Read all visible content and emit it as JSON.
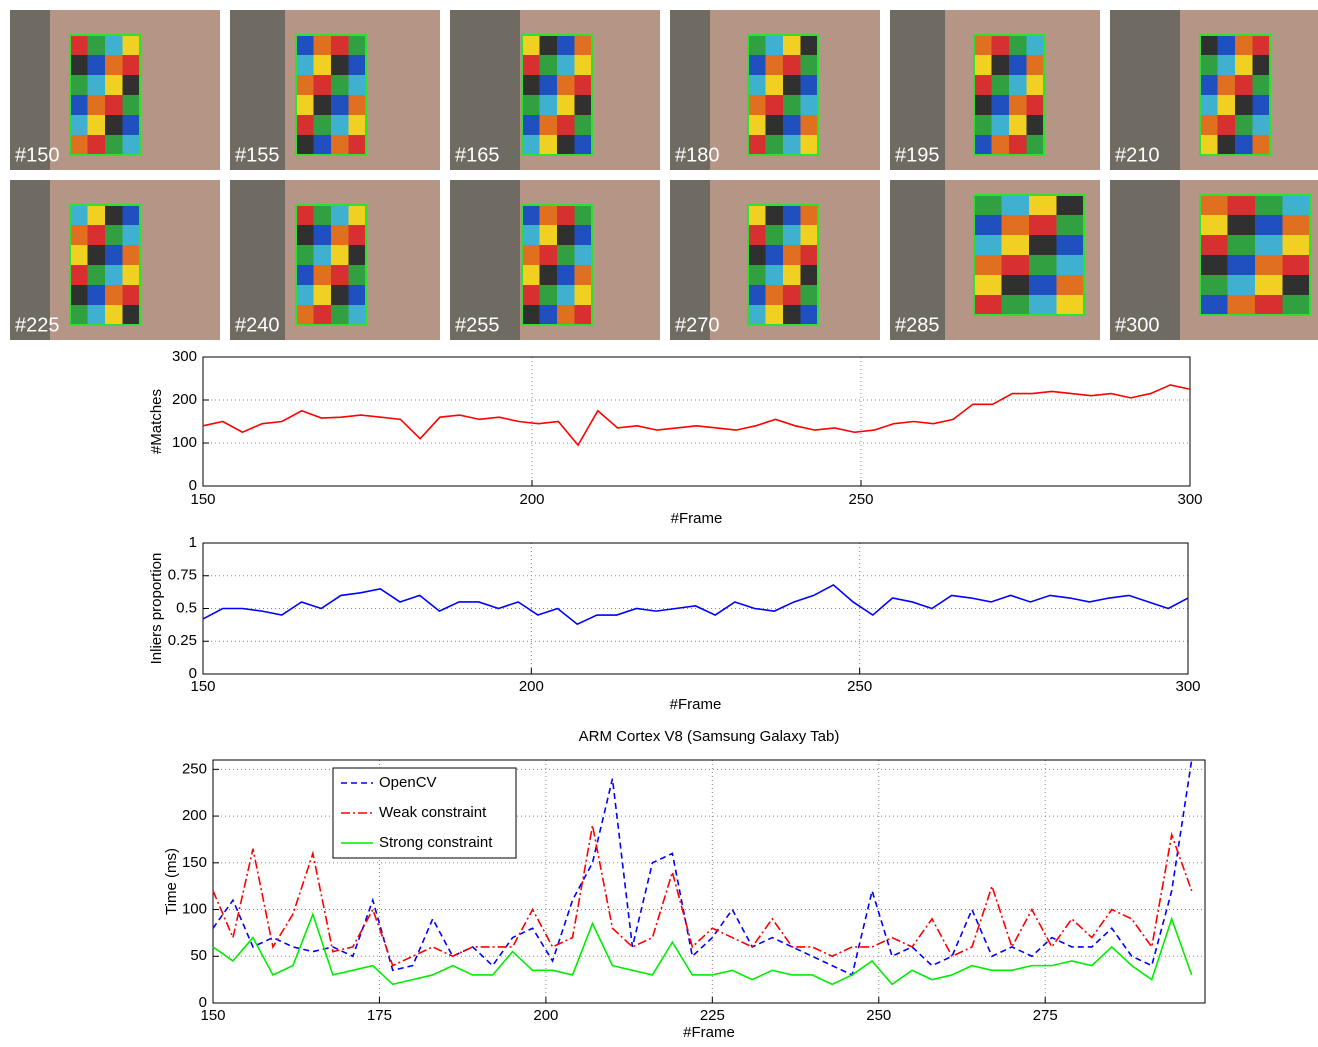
{
  "thumbnails": [
    "#150",
    "#155",
    "#165",
    "#180",
    "#195",
    "#210",
    "#225",
    "#240",
    "#255",
    "#270",
    "#285",
    "#300"
  ],
  "chart_data": [
    {
      "type": "line",
      "xlabel": "#Frame",
      "ylabel": "#Matches",
      "grid": true,
      "xlim": [
        150,
        300
      ],
      "xticks": [
        150,
        200,
        250,
        300
      ],
      "ylim": [
        0,
        300
      ],
      "yticks": [
        0,
        100,
        200,
        300
      ],
      "x": [
        150,
        153,
        156,
        159,
        162,
        165,
        168,
        171,
        174,
        177,
        180,
        183,
        186,
        189,
        192,
        195,
        198,
        201,
        204,
        207,
        210,
        213,
        216,
        219,
        222,
        225,
        228,
        231,
        234,
        237,
        240,
        243,
        246,
        249,
        252,
        255,
        258,
        261,
        264,
        267,
        270,
        273,
        276,
        279,
        282,
        285,
        288,
        291,
        294,
        297,
        300
      ],
      "series": [
        {
          "color": "#ff0000",
          "style": "solid",
          "values": [
            140,
            150,
            125,
            145,
            150,
            175,
            158,
            160,
            165,
            160,
            155,
            110,
            160,
            165,
            155,
            160,
            150,
            145,
            150,
            95,
            175,
            135,
            140,
            130,
            135,
            140,
            135,
            130,
            140,
            155,
            140,
            130,
            135,
            125,
            130,
            145,
            150,
            145,
            155,
            190,
            190,
            215,
            215,
            220,
            215,
            210,
            215,
            205,
            215,
            235,
            225
          ]
        }
      ]
    },
    {
      "type": "line",
      "xlabel": "#Frame",
      "ylabel": "Inliers proportion",
      "grid": true,
      "xlim": [
        150,
        300
      ],
      "xticks": [
        150,
        200,
        250,
        300
      ],
      "ylim": [
        0,
        1
      ],
      "yticks": [
        0,
        0.25,
        0.5,
        0.75,
        1
      ],
      "x": [
        150,
        153,
        156,
        159,
        162,
        165,
        168,
        171,
        174,
        177,
        180,
        183,
        186,
        189,
        192,
        195,
        198,
        201,
        204,
        207,
        210,
        213,
        216,
        219,
        222,
        225,
        228,
        231,
        234,
        237,
        240,
        243,
        246,
        249,
        252,
        255,
        258,
        261,
        264,
        267,
        270,
        273,
        276,
        279,
        282,
        285,
        288,
        291,
        294,
        297,
        300
      ],
      "series": [
        {
          "color": "#0000ff",
          "style": "solid",
          "values": [
            0.42,
            0.5,
            0.5,
            0.48,
            0.45,
            0.55,
            0.5,
            0.6,
            0.62,
            0.65,
            0.55,
            0.6,
            0.48,
            0.55,
            0.55,
            0.5,
            0.55,
            0.45,
            0.5,
            0.38,
            0.45,
            0.45,
            0.5,
            0.48,
            0.5,
            0.52,
            0.45,
            0.55,
            0.5,
            0.48,
            0.55,
            0.6,
            0.68,
            0.55,
            0.45,
            0.58,
            0.55,
            0.5,
            0.6,
            0.58,
            0.55,
            0.6,
            0.55,
            0.6,
            0.58,
            0.55,
            0.58,
            0.6,
            0.55,
            0.5,
            0.58
          ]
        }
      ]
    },
    {
      "type": "line",
      "title": "ARM Cortex V8 (Samsung Galaxy Tab)",
      "xlabel": "#Frame",
      "ylabel": "Time (ms)",
      "grid": true,
      "legend": "upper left",
      "xlim": [
        150,
        299
      ],
      "xticks": [
        150,
        175,
        200,
        225,
        250,
        275
      ],
      "ylim": [
        0,
        260
      ],
      "yticks": [
        0,
        50,
        100,
        150,
        200,
        250
      ],
      "x": [
        150,
        153,
        156,
        159,
        162,
        165,
        168,
        171,
        174,
        177,
        180,
        183,
        186,
        189,
        192,
        195,
        198,
        201,
        204,
        207,
        210,
        213,
        216,
        219,
        222,
        225,
        228,
        231,
        234,
        237,
        240,
        243,
        246,
        249,
        252,
        255,
        258,
        261,
        264,
        267,
        270,
        273,
        276,
        279,
        282,
        285,
        288,
        291,
        294,
        297
      ],
      "series": [
        {
          "name": "OpenCV",
          "color": "#0000ff",
          "style": "dashed",
          "values": [
            80,
            110,
            60,
            70,
            60,
            55,
            60,
            50,
            110,
            35,
            40,
            90,
            50,
            60,
            40,
            70,
            80,
            45,
            110,
            150,
            240,
            60,
            150,
            160,
            50,
            70,
            100,
            60,
            70,
            60,
            50,
            40,
            30,
            120,
            50,
            60,
            40,
            50,
            100,
            50,
            60,
            50,
            70,
            60,
            60,
            80,
            50,
            40,
            120,
            260
          ]
        },
        {
          "name": "Weak constraint",
          "color": "#ff0000",
          "style": "dashdot",
          "values": [
            120,
            70,
            165,
            60,
            95,
            160,
            55,
            60,
            100,
            40,
            50,
            60,
            50,
            60,
            60,
            60,
            100,
            60,
            70,
            190,
            80,
            60,
            70,
            140,
            60,
            80,
            70,
            60,
            90,
            60,
            60,
            50,
            60,
            60,
            70,
            60,
            90,
            50,
            60,
            125,
            60,
            100,
            60,
            90,
            70,
            100,
            90,
            60,
            180,
            120
          ]
        },
        {
          "name": "Strong constraint",
          "color": "#00ee00",
          "style": "solid",
          "values": [
            60,
            45,
            70,
            30,
            40,
            95,
            30,
            35,
            40,
            20,
            25,
            30,
            40,
            30,
            30,
            55,
            35,
            35,
            30,
            85,
            40,
            35,
            30,
            65,
            30,
            30,
            35,
            25,
            35,
            30,
            30,
            20,
            30,
            45,
            20,
            35,
            25,
            30,
            40,
            35,
            35,
            40,
            40,
            45,
            40,
            60,
            40,
            25,
            90,
            30
          ]
        }
      ]
    }
  ]
}
